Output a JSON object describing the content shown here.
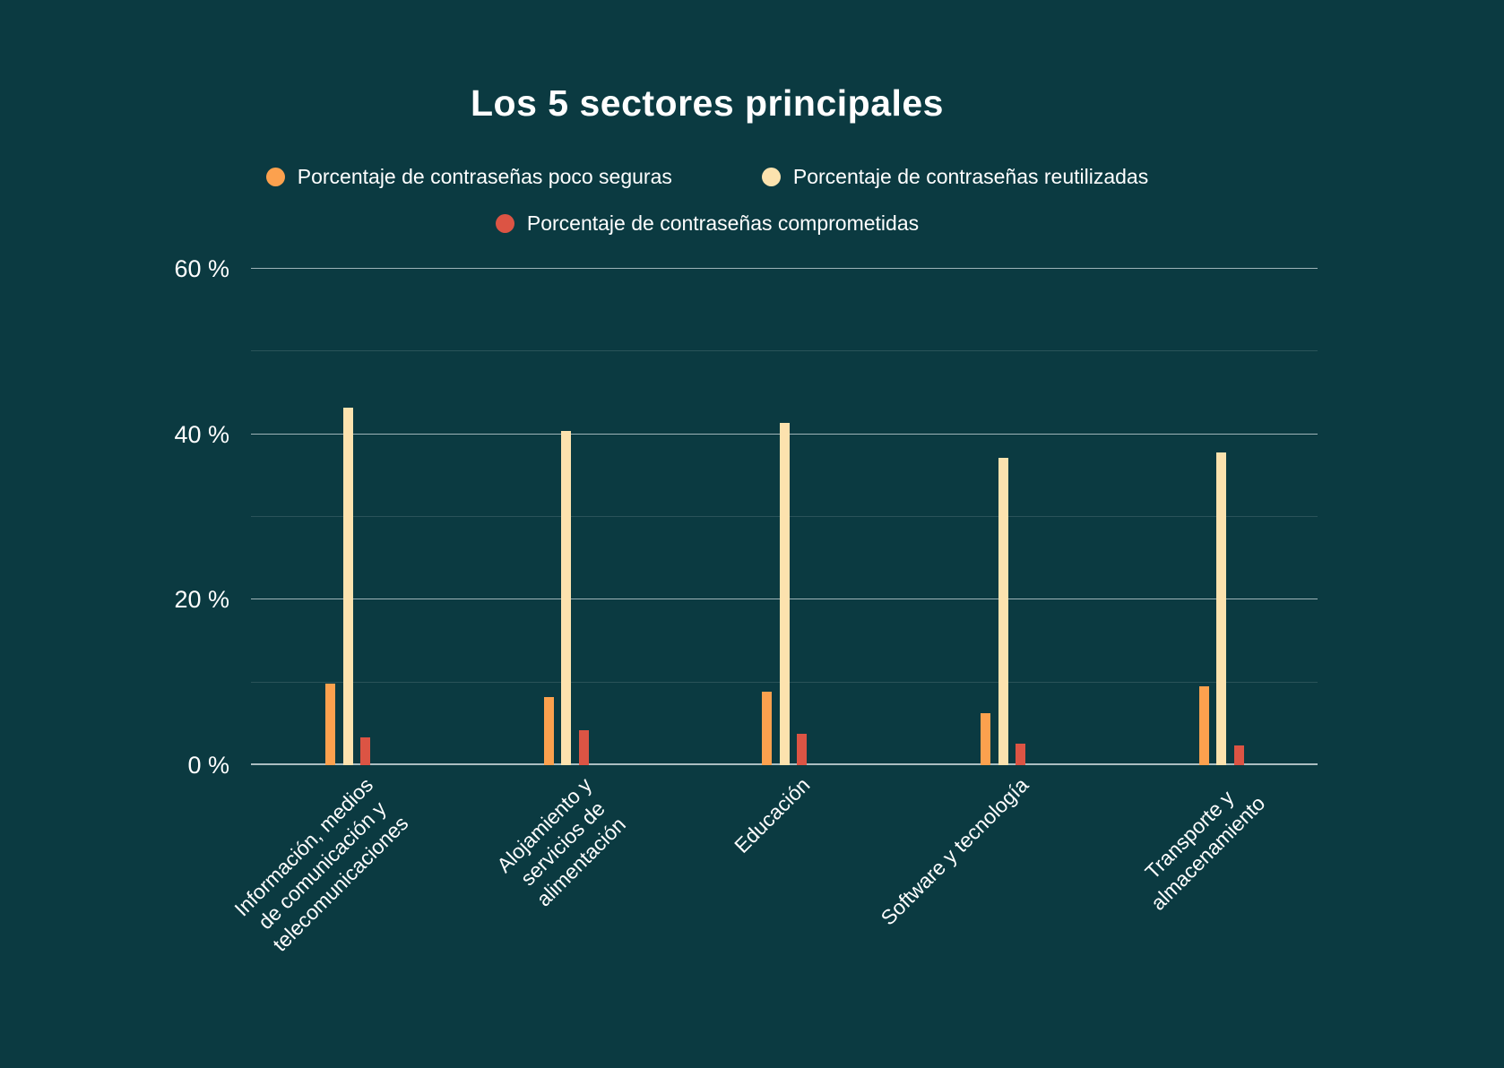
{
  "title": "Los 5 sectores principales",
  "legend": [
    {
      "label": "Porcentaje de contraseñas poco seguras",
      "color": "#FCA14E"
    },
    {
      "label": "Porcentaje de contraseñas reutilizadas",
      "color": "#FCE2AE"
    },
    {
      "label": "Porcentaje de contraseñas comprometidas",
      "color": "#DC5444"
    }
  ],
  "y_axis": {
    "tick_labels": [
      "60 %",
      "40 %",
      "20 %",
      "0 %"
    ],
    "labeled_ticks": [
      60,
      40,
      20,
      0
    ],
    "gridline_step": 10
  },
  "chart_data": {
    "type": "bar",
    "title": "Los 5 sectores principales",
    "categories": [
      "Información, medios de comunicación y telecomunicaciones",
      "Alojamiento y servicios de alimentación",
      "Educación",
      "Software y tecnología",
      "Transporte y almacenamiento"
    ],
    "category_lines": [
      [
        "Información, medios",
        "de comunicación y",
        "telecomunicaciones"
      ],
      [
        "Alojamiento y",
        "servicios de",
        "alimentación"
      ],
      [
        "Educación"
      ],
      [
        "Software y tecnología"
      ],
      [
        "Transporte y",
        "almacenamiento"
      ]
    ],
    "series": [
      {
        "name": "Porcentaje de contraseñas poco seguras",
        "color": "#FCA14E",
        "values": [
          9.9,
          8.2,
          8.9,
          6.3,
          9.5
        ]
      },
      {
        "name": "Porcentaje de contraseñas reutilizadas",
        "color": "#FCE2AE",
        "values": [
          43.2,
          40.4,
          41.4,
          37.2,
          37.8
        ]
      },
      {
        "name": "Porcentaje de contraseñas comprometidas",
        "color": "#DC5444",
        "values": [
          3.4,
          4.2,
          3.8,
          2.6,
          2.4
        ]
      }
    ],
    "ylim": [
      0,
      60
    ],
    "y_ticks_labeled": [
      0,
      20,
      40,
      60
    ],
    "gridlines_every": 10,
    "grid": true,
    "legend_position": "top",
    "background": "#0B3A41"
  }
}
